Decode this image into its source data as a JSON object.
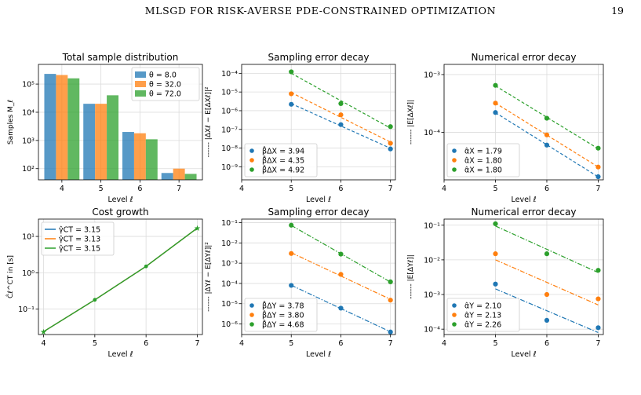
{
  "page": {
    "running_head": "MLSGD FOR RISK-AVERSE PDE-CONSTRAINED OPTIMIZATION",
    "page_number": "19"
  },
  "chart_data": [
    {
      "id": "total-samples",
      "type": "bar",
      "title": "Total sample distribution",
      "xlabel": "Level ℓ",
      "ylabel": "Samples M_ℓ",
      "yscale": "log",
      "ylim": [
        40,
        500000
      ],
      "xlim": [
        3.4,
        7.6
      ],
      "categories": [
        4,
        5,
        6,
        7
      ],
      "yticks": [
        100,
        1000,
        10000,
        100000
      ],
      "ytick_labels": [
        "10²",
        "10³",
        "10⁴",
        "10⁵"
      ],
      "xticks": [
        4,
        5,
        6,
        7
      ],
      "grid": true,
      "legend_position": "upper right",
      "series": [
        {
          "name": "θ = 8.0",
          "color": "#1f77b4",
          "values": [
            230000,
            20000,
            2000,
            70
          ]
        },
        {
          "name": "θ = 32.0",
          "color": "#ff7f0e",
          "values": [
            210000,
            20000,
            1800,
            100
          ]
        },
        {
          "name": "θ = 72.0",
          "color": "#2ca02c",
          "values": [
            160000,
            40000,
            1100,
            65
          ]
        }
      ]
    },
    {
      "id": "sampling-x",
      "type": "scatter",
      "title": "Sampling error decay",
      "xlabel": "Level ℓ",
      "ylabel": "------ |ΔXℓ − E[ΔXℓ]|²",
      "yscale": "log",
      "ylim": [
        2e-10,
        0.0003
      ],
      "xlim": [
        4,
        7.1
      ],
      "yticks": [
        1e-09,
        1e-08,
        1e-07,
        1e-06,
        1e-05,
        0.0001
      ],
      "ytick_labels": [
        "10⁻⁹",
        "10⁻⁸",
        "10⁻⁷",
        "10⁻⁶",
        "10⁻⁵",
        "10⁻⁴"
      ],
      "xticks": [
        4,
        5,
        6,
        7
      ],
      "grid": true,
      "legend_position": "lower left",
      "series": [
        {
          "name": "β̂ΔX = 3.94",
          "color": "#1f77b4",
          "dash": "dashed",
          "x": [
            5,
            6,
            7
          ],
          "y": [
            2.2e-06,
            1.8e-07,
            9e-09
          ]
        },
        {
          "name": "β̂ΔX = 4.35",
          "color": "#ff7f0e",
          "dash": "dashed",
          "x": [
            5,
            6,
            7
          ],
          "y": [
            8e-06,
            6e-07,
            1.8e-08
          ]
        },
        {
          "name": "β̂ΔX = 4.92",
          "color": "#2ca02c",
          "dash": "dashed",
          "x": [
            5,
            6,
            7
          ],
          "y": [
            0.00012,
            2.4e-06,
            1.4e-07
          ]
        }
      ]
    },
    {
      "id": "numerical-x",
      "type": "scatter",
      "title": "Numerical error decay",
      "xlabel": "Level ℓ",
      "ylabel": "------ |E[ΔXℓ]|",
      "yscale": "log",
      "ylim": [
        1.5e-05,
        0.0015
      ],
      "xlim": [
        4,
        7.1
      ],
      "yticks": [
        0.0001,
        0.001
      ],
      "ytick_labels": [
        "10⁻⁴",
        "10⁻³"
      ],
      "xticks": [
        4,
        5,
        6,
        7
      ],
      "grid": true,
      "legend_position": "lower left",
      "series": [
        {
          "name": "α̂X = 1.79",
          "color": "#1f77b4",
          "dash": "dashed",
          "x": [
            5,
            6,
            7
          ],
          "y": [
            0.00022,
            6e-05,
            1.7e-05
          ]
        },
        {
          "name": "α̂X = 1.80",
          "color": "#ff7f0e",
          "dash": "dashed",
          "x": [
            5,
            6,
            7
          ],
          "y": [
            0.00032,
            9e-05,
            2.5e-05
          ]
        },
        {
          "name": "α̂X = 1.80",
          "color": "#2ca02c",
          "dash": "dashed",
          "x": [
            5,
            6,
            7
          ],
          "y": [
            0.00065,
            0.000175,
            5.3e-05
          ]
        }
      ]
    },
    {
      "id": "cost-growth",
      "type": "line",
      "title": "Cost growth",
      "xlabel": "Level ℓ",
      "ylabel": "Ĉℓ^CT in [s]",
      "yscale": "log",
      "ylim": [
        0.02,
        30
      ],
      "xlim": [
        3.9,
        7.1
      ],
      "yticks": [
        0.1,
        1,
        10
      ],
      "ytick_labels": [
        "10⁻¹",
        "10⁰",
        "10¹"
      ],
      "xticks": [
        4,
        5,
        6,
        7
      ],
      "grid": true,
      "legend_position": "upper left",
      "series": [
        {
          "name": "γ̂CT = 3.15",
          "color": "#1f77b4",
          "x": [
            4,
            5,
            6,
            7
          ],
          "y": [
            0.024,
            0.18,
            1.5,
            17
          ]
        },
        {
          "name": "γ̂CT = 3.13",
          "color": "#ff7f0e",
          "x": [
            4,
            5,
            6,
            7
          ],
          "y": [
            0.024,
            0.18,
            1.5,
            17
          ]
        },
        {
          "name": "γ̂CT = 3.15",
          "color": "#2ca02c",
          "x": [
            4,
            5,
            6,
            7
          ],
          "y": [
            0.024,
            0.18,
            1.5,
            17
          ]
        }
      ]
    },
    {
      "id": "sampling-y",
      "type": "scatter",
      "title": "Sampling error decay",
      "xlabel": "Level ℓ",
      "ylabel": "------ |ΔYℓ − E[ΔYℓ]|²",
      "yscale": "log",
      "ylim": [
        3e-07,
        0.15
      ],
      "xlim": [
        4,
        7.1
      ],
      "yticks": [
        1e-06,
        1e-05,
        0.0001,
        0.001,
        0.01,
        0.1
      ],
      "ytick_labels": [
        "10⁻⁶",
        "10⁻⁵",
        "10⁻⁴",
        "10⁻³",
        "10⁻²",
        "10⁻¹"
      ],
      "xticks": [
        4,
        5,
        6,
        7
      ],
      "grid": true,
      "legend_position": "lower left",
      "series": [
        {
          "name": "β̂ΔY = 3.78",
          "color": "#1f77b4",
          "dash": "dashdot",
          "x": [
            5,
            6,
            7
          ],
          "y": [
            8e-05,
            6e-06,
            4e-07
          ]
        },
        {
          "name": "β̂ΔY = 3.80",
          "color": "#ff7f0e",
          "dash": "dashdot",
          "x": [
            5,
            6,
            7
          ],
          "y": [
            0.003,
            0.00028,
            1.5e-05
          ]
        },
        {
          "name": "β̂ΔY = 4.68",
          "color": "#2ca02c",
          "dash": "dashdot",
          "x": [
            5,
            6,
            7
          ],
          "y": [
            0.075,
            0.0028,
            0.00012
          ]
        }
      ]
    },
    {
      "id": "numerical-y",
      "type": "scatter",
      "title": "Numerical error decay",
      "xlabel": "Level ℓ",
      "ylabel": "------ |E[ΔYℓ]|",
      "yscale": "log",
      "ylim": [
        7e-05,
        0.15
      ],
      "xlim": [
        4,
        7.1
      ],
      "yticks": [
        0.0001,
        0.001,
        0.01,
        0.1
      ],
      "ytick_labels": [
        "10⁻⁴",
        "10⁻³",
        "10⁻²",
        "10⁻¹"
      ],
      "xticks": [
        4,
        5,
        6,
        7
      ],
      "grid": true,
      "legend_position": "lower left",
      "series": [
        {
          "name": "α̂Y = 2.10",
          "color": "#1f77b4",
          "dash": "dashdot",
          "x": [
            5,
            6,
            7
          ],
          "y": [
            0.002,
            0.00018,
            0.00011
          ]
        },
        {
          "name": "α̂Y = 2.13",
          "color": "#ff7f0e",
          "dash": "dashdot",
          "x": [
            5,
            6,
            7
          ],
          "y": [
            0.015,
            0.001,
            0.00075
          ]
        },
        {
          "name": "α̂Y = 2.26",
          "color": "#2ca02c",
          "dash": "dashdot",
          "x": [
            5,
            6,
            7
          ],
          "y": [
            0.11,
            0.015,
            0.005
          ]
        }
      ]
    }
  ]
}
